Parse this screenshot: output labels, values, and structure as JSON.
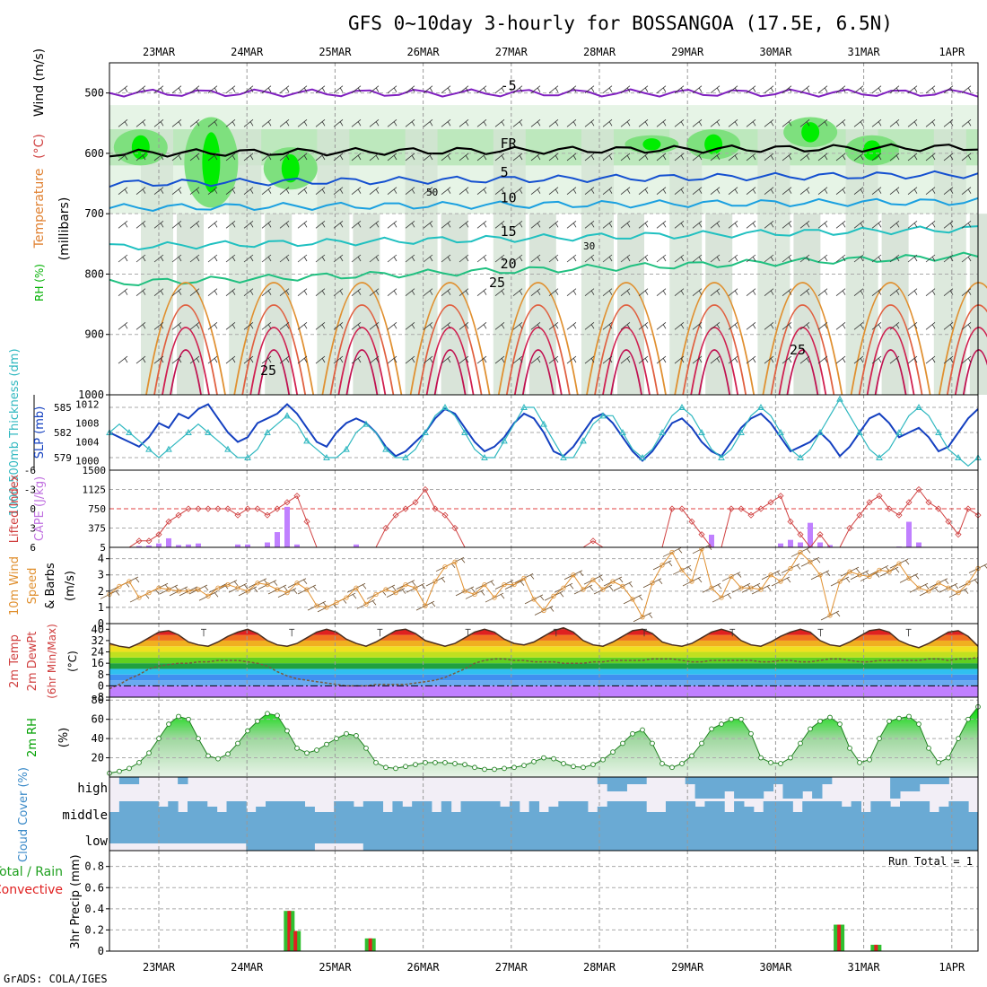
{
  "title": "GFS 0~10day 3-hourly for BOSSANGOA (17.5E, 6.5N)",
  "footer": "GrADS: COLA/IGES",
  "colors": {
    "rh_fill": "#7ee07e",
    "rh_dark": "#00ee00",
    "cloud": "#6aaad4",
    "precip_total": "#30c030",
    "precip_conv": "#e02020",
    "slp": "#1440c0",
    "thick": "#30b8c0",
    "li": "#d04040",
    "cape": "#c080ff",
    "wind": "#e09030"
  },
  "chart_data": [
    {
      "type": "line",
      "panel": "upper-air",
      "ylabel_parts": [
        "RH (%)",
        "Temperature",
        "(°C)",
        "Wind (m/s)"
      ],
      "ylabel_unit": "(millibars)",
      "y_ticks": [
        "500",
        "600",
        "700",
        "800",
        "900",
        "1000"
      ],
      "ylim": [
        1000,
        450
      ],
      "x_labels": [
        "23MAR",
        "24MAR",
        "25MAR",
        "26MAR",
        "27MAR",
        "28MAR",
        "29MAR",
        "30MAR",
        "31MAR",
        "1APR"
      ],
      "temperature_isotherms": [
        {
          "label": "-5",
          "levels": [
            {
              "x": 0,
              "p": 500
            },
            {
              "x": 10,
              "p": 500
            }
          ]
        },
        {
          "label": "FR",
          "levels": [
            {
              "x": 0,
              "p": 600
            },
            {
              "x": 10,
              "p": 590
            }
          ]
        },
        {
          "label": "5",
          "levels": [
            {
              "x": 0,
              "p": 650
            },
            {
              "x": 10,
              "p": 635
            }
          ]
        },
        {
          "label": "10",
          "levels": [
            {
              "x": 0,
              "p": 690
            },
            {
              "x": 10,
              "p": 680
            }
          ]
        },
        {
          "label": "15",
          "levels": [
            {
              "x": 0,
              "p": 755
            },
            {
              "x": 10,
              "p": 725
            }
          ]
        },
        {
          "label": "20",
          "levels": [
            {
              "x": 0,
              "p": 815
            },
            {
              "x": 10,
              "p": 770
            }
          ]
        },
        {
          "label": "25",
          "levels": []
        }
      ],
      "rh_labels": [
        "30",
        "50"
      ]
    },
    {
      "type": "line",
      "panel": "slp-thickness",
      "ylabel_left": "1000-500mb Thickness (dm)",
      "ylabel_right": "SLP (mb)",
      "y_ticks_left": [
        "585",
        "582",
        "579"
      ],
      "y_ticks_right": [
        "1012",
        "1008",
        "1004",
        "1000"
      ],
      "ylim_left": [
        577.5,
        586.5
      ],
      "ylim_right": [
        998,
        1014
      ],
      "series": [
        {
          "name": "SLP (mb)",
          "values": [
            1006,
            1005,
            1004,
            1003,
            1005,
            1008,
            1007,
            1010,
            1009,
            1011,
            1012,
            1009,
            1006,
            1004,
            1005,
            1008,
            1009,
            1010,
            1012,
            1010,
            1007,
            1004,
            1003,
            1006,
            1008,
            1009,
            1008,
            1006,
            1003,
            1001,
            1002,
            1004,
            1006,
            1009,
            1011,
            1010,
            1007,
            1004,
            1002,
            1003,
            1005,
            1008,
            1010,
            1009,
            1006,
            1002,
            1001,
            1003,
            1006,
            1009,
            1010,
            1008,
            1005,
            1002,
            1000,
            1002,
            1005,
            1008,
            1009,
            1007,
            1004,
            1002,
            1001,
            1004,
            1007,
            1009,
            1010,
            1008,
            1005,
            1002,
            1003,
            1004,
            1006,
            1004,
            1001,
            1003,
            1006,
            1009,
            1010,
            1008,
            1005,
            1006,
            1007,
            1005,
            1002,
            1003,
            1006,
            1009,
            1011
          ]
        },
        {
          "name": "Thickness (dm)",
          "values": [
            582,
            583,
            582,
            581,
            580,
            579,
            580,
            581,
            582,
            583,
            582,
            581,
            580,
            579,
            579,
            580,
            582,
            583,
            584,
            583,
            581,
            580,
            579,
            579,
            580,
            582,
            583,
            582,
            580,
            579,
            579,
            580,
            582,
            584,
            585,
            584,
            582,
            580,
            579,
            579,
            581,
            583,
            585,
            585,
            583,
            581,
            579,
            579,
            581,
            583,
            584,
            584,
            582,
            580,
            579,
            580,
            582,
            584,
            585,
            584,
            582,
            580,
            579,
            580,
            582,
            584,
            585,
            584,
            582,
            580,
            579,
            580,
            582,
            584,
            586,
            584,
            582,
            580,
            579,
            580,
            582,
            584,
            585,
            584,
            582,
            580,
            579,
            578,
            579
          ]
        }
      ]
    },
    {
      "type": "bar",
      "panel": "lifted-cape",
      "ylabel_left": "Lifted Index",
      "ylabel_right": "CAPE (J/kg)",
      "y_ticks_left": [
        "-6",
        "-3",
        "0",
        "3",
        "6"
      ],
      "y_ticks_right": [
        "1500",
        "1125",
        "750",
        "375",
        "5"
      ],
      "ylim_left": [
        6,
        -6
      ],
      "ylim_right": [
        5,
        1500
      ],
      "series": [
        {
          "name": "Lifted Index",
          "values": [
            6,
            6,
            6,
            5,
            5,
            4,
            2,
            1,
            0,
            0,
            0,
            0,
            0,
            1,
            0,
            0,
            1,
            0,
            -1,
            -2,
            2,
            6,
            6,
            6,
            6,
            6,
            6,
            6,
            3,
            1,
            0,
            -1,
            -3,
            0,
            1,
            3,
            6,
            6,
            6,
            6,
            6,
            6,
            6,
            6,
            6,
            6,
            6,
            6,
            6,
            5,
            6,
            6,
            6,
            6,
            6,
            6,
            6,
            0,
            0,
            2,
            4,
            6,
            6,
            0,
            0,
            1,
            0,
            -1,
            -2,
            2,
            4,
            6,
            4,
            6,
            6,
            3,
            1,
            -1,
            -2,
            0,
            1,
            -1,
            -3,
            -1,
            0,
            2,
            4,
            0,
            1
          ]
        },
        {
          "name": "CAPE (J/kg)",
          "values": [
            0,
            0,
            0,
            30,
            40,
            80,
            180,
            50,
            60,
            80,
            0,
            0,
            0,
            60,
            60,
            0,
            100,
            300,
            790,
            60,
            0,
            0,
            0,
            0,
            0,
            60,
            0,
            0,
            0,
            0,
            0,
            0,
            0,
            0,
            0,
            0,
            0,
            0,
            0,
            0,
            0,
            0,
            0,
            0,
            0,
            0,
            0,
            0,
            0,
            0,
            0,
            0,
            0,
            0,
            0,
            0,
            0,
            0,
            0,
            0,
            0,
            250,
            0,
            0,
            0,
            0,
            0,
            0,
            80,
            150,
            100,
            480,
            100,
            50,
            0,
            0,
            0,
            0,
            0,
            0,
            20,
            500,
            100,
            0,
            0,
            0,
            0,
            0,
            0
          ]
        }
      ]
    },
    {
      "type": "line",
      "panel": "wind10m",
      "ylabel": "10m Wind Speed & Barbs (m/s)",
      "y_ticks": [
        "4",
        "3",
        "2",
        "1",
        "0"
      ],
      "ylim": [
        0,
        4.7
      ],
      "series": [
        {
          "name": "10m Wind Speed",
          "values": [
            1.8,
            2.3,
            2.6,
            1.6,
            1.9,
            2.2,
            2.1,
            2.0,
            2.0,
            2.1,
            1.7,
            2.2,
            2.4,
            2.2,
            2.0,
            2.5,
            2.4,
            2.1,
            1.9,
            2.5,
            2.1,
            1.1,
            1.0,
            1.3,
            1.6,
            2.2,
            1.2,
            1.8,
            2.1,
            1.9,
            2.4,
            2.2,
            1.1,
            2.6,
            3.5,
            3.8,
            2.0,
            1.8,
            2.4,
            1.6,
            2.4,
            2.4,
            2.8,
            1.5,
            0.8,
            1.7,
            2.2,
            3.0,
            2.1,
            2.7,
            2.1,
            2.6,
            2.3,
            1.5,
            0.4,
            2.5,
            3.6,
            4.4,
            3.3,
            2.6,
            4.6,
            2.2,
            1.6,
            2.9,
            2.2,
            2.2,
            2.1,
            3.0,
            2.6,
            3.4,
            4.4,
            3.8,
            3.0,
            0.5,
            2.6,
            3.2,
            3.0,
            2.9,
            3.3,
            3.2,
            3.7,
            2.8,
            2.2,
            2.0,
            2.5,
            2.2,
            1.9,
            2.5,
            3.4
          ]
        }
      ]
    },
    {
      "type": "area",
      "panel": "temp2m",
      "ylabel": "2m Temp 2m DewPt (6hr Min/Max) (°C)",
      "y_ticks": [
        "40",
        "32",
        "24",
        "16",
        "8",
        "0",
        "-8"
      ],
      "ylim": [
        -8,
        44
      ],
      "series": [
        {
          "name": "2m Temp",
          "values": [
            30,
            28,
            27,
            30,
            34,
            38,
            39,
            36,
            31,
            29,
            28,
            31,
            35,
            38,
            40,
            37,
            32,
            29,
            28,
            30,
            34,
            38,
            40,
            38,
            33,
            30,
            28,
            31,
            35,
            39,
            40,
            37,
            32,
            30,
            28,
            30,
            34,
            38,
            40,
            38,
            33,
            30,
            29,
            31,
            35,
            39,
            41,
            38,
            32,
            29,
            28,
            31,
            35,
            39,
            40,
            37,
            31,
            29,
            28,
            30,
            34,
            38,
            40,
            38,
            32,
            29,
            28,
            31,
            35,
            38,
            40,
            38,
            32,
            29,
            28,
            31,
            35,
            39,
            40,
            38,
            32,
            29,
            27,
            30,
            34,
            38,
            39,
            35,
            28
          ]
        },
        {
          "name": "2m DewPt",
          "values": [
            -2,
            1,
            5,
            8,
            12,
            14,
            15,
            16,
            16,
            17,
            17,
            18,
            18,
            18,
            17,
            16,
            14,
            10,
            7,
            5,
            4,
            3,
            2,
            1,
            0,
            0,
            0,
            1,
            1,
            1,
            1,
            2,
            3,
            4,
            6,
            9,
            12,
            16,
            18,
            19,
            19,
            18,
            18,
            17,
            17,
            17,
            16,
            16,
            16,
            17,
            17,
            18,
            18,
            18,
            18,
            19,
            19,
            19,
            18,
            17,
            17,
            18,
            18,
            18,
            18,
            18,
            17,
            17,
            18,
            18,
            17,
            17,
            18,
            19,
            19,
            18,
            17,
            17,
            18,
            18,
            18,
            18,
            18,
            19,
            19,
            18,
            19,
            19,
            20
          ]
        }
      ]
    },
    {
      "type": "area",
      "panel": "rh2m",
      "ylabel": "2m RH (%)",
      "y_ticks": [
        "80",
        "60",
        "40",
        "20"
      ],
      "ylim": [
        0,
        83
      ],
      "series": [
        {
          "name": "2m RH",
          "values": [
            4,
            6,
            9,
            15,
            25,
            40,
            55,
            63,
            60,
            40,
            22,
            19,
            24,
            35,
            48,
            58,
            66,
            64,
            48,
            30,
            25,
            28,
            34,
            40,
            45,
            43,
            30,
            15,
            10,
            9,
            11,
            13,
            15,
            15,
            15,
            14,
            13,
            10,
            8,
            8,
            9,
            10,
            12,
            16,
            20,
            19,
            14,
            11,
            10,
            13,
            18,
            26,
            35,
            45,
            49,
            35,
            14,
            10,
            14,
            22,
            35,
            50,
            55,
            60,
            60,
            45,
            20,
            15,
            14,
            20,
            35,
            50,
            58,
            62,
            55,
            30,
            15,
            18,
            40,
            58,
            61,
            63,
            55,
            30,
            15,
            20,
            40,
            60,
            73
          ]
        }
      ]
    },
    {
      "type": "heatmap",
      "panel": "cloud",
      "ylabel": "Cloud Cover (%)",
      "row_labels": [
        "high",
        "middle",
        "low"
      ]
    },
    {
      "type": "bar",
      "panel": "precip",
      "ylabel_parts": [
        "Total / Rain",
        "Convective",
        "3hr Precip (mm)"
      ],
      "annotation": "Run Total = 1",
      "y_ticks": [
        "0.8",
        "0.6",
        "0.4",
        "0.2",
        "0"
      ],
      "ylim": [
        0,
        0.95
      ],
      "bars": [
        {
          "x": 1.48,
          "value": 0.38
        },
        {
          "x": 1.55,
          "value": 0.19
        },
        {
          "x": 2.4,
          "value": 0.12
        },
        {
          "x": 7.72,
          "value": 0.25
        },
        {
          "x": 8.14,
          "value": 0.06
        }
      ],
      "x_labels": [
        "23MAR",
        "24MAR",
        "25MAR",
        "26MAR",
        "27MAR",
        "28MAR",
        "29MAR",
        "30MAR",
        "31MAR",
        "1APR"
      ]
    }
  ]
}
